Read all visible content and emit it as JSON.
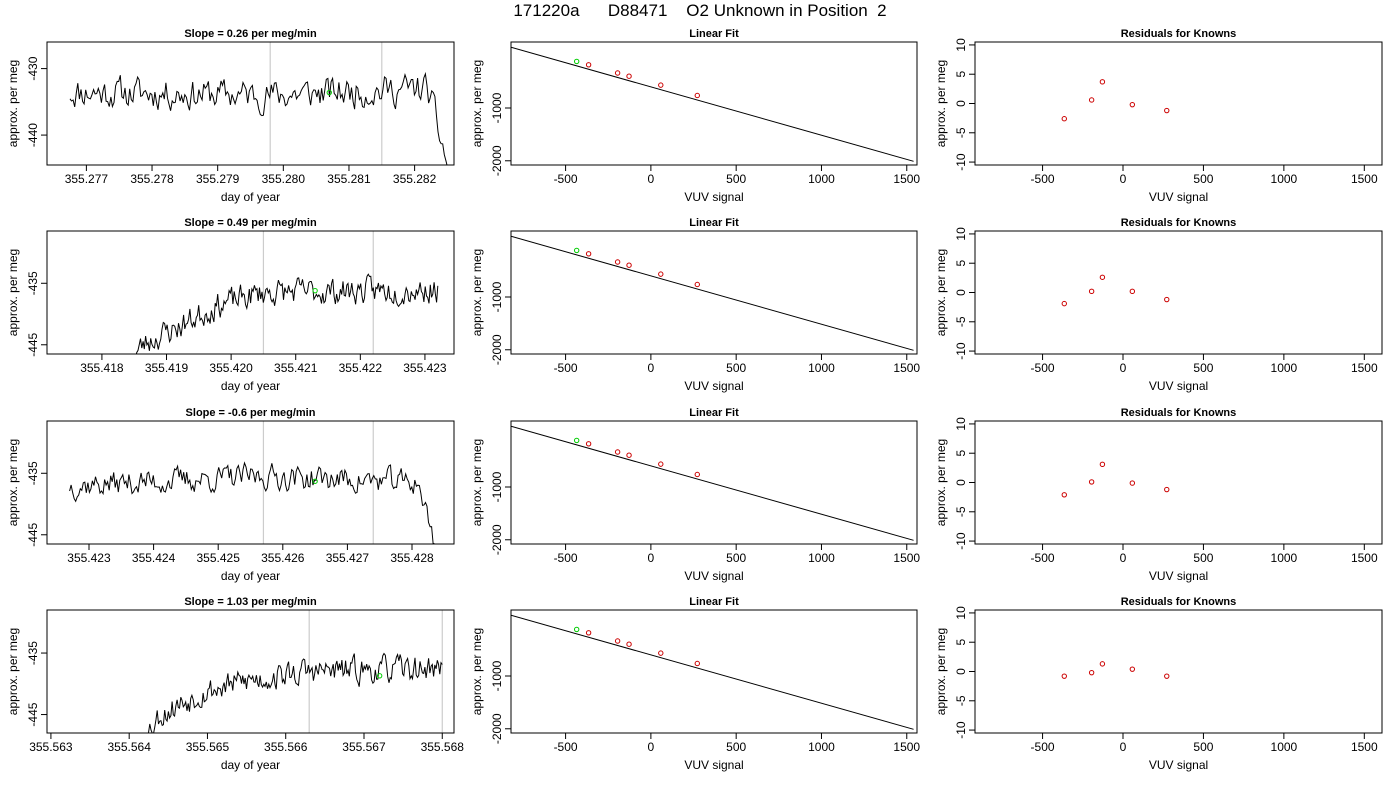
{
  "page": {
    "title": "171220a      D88471    O2 Unknown in Position  2"
  },
  "chart_data": [
    {
      "type": "line",
      "panel": "trace",
      "title": "Slope =  0.26  per meg/min",
      "xlabel": "day of year",
      "ylabel": "approx. per meg",
      "xlim": [
        355.2764,
        355.2826
      ],
      "ylim": [
        -444.5,
        -426
      ],
      "xticks": [
        355.277,
        355.278,
        355.279,
        355.28,
        355.281,
        355.282
      ],
      "xtick_labels": [
        "355.277",
        "355.278",
        "355.279",
        "355.280",
        "355.281",
        "355.282"
      ],
      "yticks": [
        -430,
        -440
      ],
      "ytick_labels": [
        "-430",
        "-440"
      ],
      "vlines": [
        355.2798,
        355.2815
      ],
      "marker": {
        "x": 355.2807,
        "y": -433.6,
        "color": "#00cc00"
      },
      "trace": {
        "x_start": 355.27675,
        "x_end": 355.2825,
        "seed": 11,
        "base": -434.5,
        "amp": 2.6,
        "segments": [
          {
            "x": 355.27675,
            "y": -433.5
          },
          {
            "x": 355.2798,
            "y": -434
          },
          {
            "x": 355.2822,
            "y": -433
          },
          {
            "x": 355.2825,
            "y": -444.5
          }
        ]
      }
    },
    {
      "type": "line",
      "panel": "fit",
      "title": "Linear Fit",
      "xlabel": "VUV signal",
      "ylabel": "approx. per meg",
      "xlim": [
        -820,
        1560
      ],
      "ylim": [
        -2080,
        250
      ],
      "xticks": [
        -500,
        0,
        500,
        1000,
        1500
      ],
      "xtick_labels": [
        "-500",
        "0",
        "500",
        "1000",
        "1500"
      ],
      "yticks": [
        -1000,
        -2000
      ],
      "ytick_labels": [
        "-1000",
        "-2000"
      ],
      "line": {
        "x": [
          -820,
          1540
        ],
        "y": [
          150,
          -2010
        ]
      },
      "knowns": {
        "x": [
          -365,
          -195,
          -128,
          58,
          272
        ],
        "y": [
          -182,
          -337,
          -398,
          -567,
          -763
        ],
        "color": "#cc0000"
      },
      "unknown": {
        "x": [
          -435
        ],
        "y": [
          -118
        ],
        "color": "#00cc00"
      }
    },
    {
      "type": "scatter",
      "panel": "residuals",
      "title": "Residuals for Knowns",
      "xlabel": "VUV signal",
      "ylabel": "approx. per meg",
      "xlim": [
        -920,
        1610
      ],
      "ylim": [
        -10.5,
        10.5
      ],
      "xticks": [
        -500,
        0,
        500,
        1000,
        1500
      ],
      "xtick_labels": [
        "-500",
        "0",
        "500",
        "1000",
        "1500"
      ],
      "yticks": [
        10,
        5,
        0,
        -5,
        -10
      ],
      "ytick_labels": [
        "10",
        "5",
        "0",
        "-5",
        "-10"
      ],
      "points": {
        "x": [
          -365,
          -195,
          -128,
          58,
          272
        ],
        "y": [
          -2.6,
          0.6,
          3.7,
          -0.2,
          -1.2
        ],
        "color": "#cc0000"
      }
    },
    {
      "type": "line",
      "panel": "trace",
      "title": "Slope =  0.49  per meg/min",
      "xlabel": "day of year",
      "ylabel": "approx. per meg",
      "xlim": [
        355.41715,
        355.42345
      ],
      "ylim": [
        -446.5,
        -426.5
      ],
      "xticks": [
        355.418,
        355.419,
        355.42,
        355.421,
        355.422,
        355.423
      ],
      "xtick_labels": [
        "355.418",
        "355.419",
        "355.420",
        "355.421",
        "355.422",
        "355.423"
      ],
      "yticks": [
        -435,
        -445
      ],
      "ytick_labels": [
        "-435",
        "-445"
      ],
      "vlines": [
        355.4205,
        355.4222
      ],
      "marker": {
        "x": 355.4213,
        "y": -436.2,
        "color": "#00cc00"
      },
      "trace": {
        "x_start": 355.4185,
        "x_end": 355.4232,
        "seed": 23,
        "base": -437,
        "amp": 2.4,
        "segments": [
          {
            "x": 355.4185,
            "y": -446.5
          },
          {
            "x": 355.4187,
            "y": -444.5
          },
          {
            "x": 355.4192,
            "y": -442
          },
          {
            "x": 355.4198,
            "y": -438.5
          },
          {
            "x": 355.4205,
            "y": -436.5
          },
          {
            "x": 355.4232,
            "y": -436
          }
        ]
      }
    },
    {
      "type": "line",
      "panel": "fit",
      "title": "Linear Fit",
      "xlabel": "VUV signal",
      "ylabel": "approx. per meg",
      "xlim": [
        -820,
        1560
      ],
      "ylim": [
        -2080,
        250
      ],
      "xticks": [
        -500,
        0,
        500,
        1000,
        1500
      ],
      "xtick_labels": [
        "-500",
        "0",
        "500",
        "1000",
        "1500"
      ],
      "yticks": [
        -1000,
        -2000
      ],
      "ytick_labels": [
        "-1000",
        "-2000"
      ],
      "line": {
        "x": [
          -820,
          1540
        ],
        "y": [
          150,
          -2010
        ]
      },
      "knowns": {
        "x": [
          -365,
          -195,
          -128,
          58,
          272
        ],
        "y": [
          -182,
          -337,
          -398,
          -567,
          -763
        ],
        "color": "#cc0000"
      },
      "unknown": {
        "x": [
          -435
        ],
        "y": [
          -118
        ],
        "color": "#00cc00"
      }
    },
    {
      "type": "scatter",
      "panel": "residuals",
      "title": "Residuals for Knowns",
      "xlabel": "VUV signal",
      "ylabel": "approx. per meg",
      "xlim": [
        -920,
        1610
      ],
      "ylim": [
        -10.5,
        10.5
      ],
      "xticks": [
        -500,
        0,
        500,
        1000,
        1500
      ],
      "xtick_labels": [
        "-500",
        "0",
        "500",
        "1000",
        "1500"
      ],
      "yticks": [
        10,
        5,
        0,
        -5,
        -10
      ],
      "ytick_labels": [
        "10",
        "5",
        "0",
        "-5",
        "-10"
      ],
      "points": {
        "x": [
          -365,
          -195,
          -128,
          58,
          272
        ],
        "y": [
          -1.9,
          0.2,
          2.6,
          0.2,
          -1.2
        ],
        "color": "#cc0000"
      }
    },
    {
      "type": "line",
      "panel": "trace",
      "title": "Slope =  -0.6  per meg/min",
      "xlabel": "day of year",
      "ylabel": "approx. per meg",
      "xlim": [
        355.42235,
        355.42865
      ],
      "ylim": [
        -446.5,
        -426.5
      ],
      "xticks": [
        355.423,
        355.424,
        355.425,
        355.426,
        355.427,
        355.428
      ],
      "xtick_labels": [
        "355.423",
        "355.424",
        "355.425",
        "355.426",
        "355.427",
        "355.428"
      ],
      "yticks": [
        -435,
        -445
      ],
      "ytick_labels": [
        "-435",
        "-445"
      ],
      "vlines": [
        355.4257,
        355.4274
      ],
      "marker": {
        "x": 355.4265,
        "y": -436.3,
        "color": "#00cc00"
      },
      "trace": {
        "x_start": 355.4227,
        "x_end": 355.42835,
        "seed": 37,
        "base": -436.5,
        "amp": 2.3,
        "segments": [
          {
            "x": 355.4227,
            "y": -437
          },
          {
            "x": 355.4257,
            "y": -435.5
          },
          {
            "x": 355.4281,
            "y": -436.5
          },
          {
            "x": 355.42835,
            "y": -446.5
          }
        ]
      }
    },
    {
      "type": "line",
      "panel": "fit",
      "title": "Linear Fit",
      "xlabel": "VUV signal",
      "ylabel": "approx. per meg",
      "xlim": [
        -820,
        1560
      ],
      "ylim": [
        -2080,
        250
      ],
      "xticks": [
        -500,
        0,
        500,
        1000,
        1500
      ],
      "xtick_labels": [
        "-500",
        "0",
        "500",
        "1000",
        "1500"
      ],
      "yticks": [
        -1000,
        -2000
      ],
      "ytick_labels": [
        "-1000",
        "-2000"
      ],
      "line": {
        "x": [
          -820,
          1540
        ],
        "y": [
          150,
          -2010
        ]
      },
      "knowns": {
        "x": [
          -365,
          -195,
          -128,
          58,
          272
        ],
        "y": [
          -182,
          -337,
          -398,
          -567,
          -763
        ],
        "color": "#cc0000"
      },
      "unknown": {
        "x": [
          -435
        ],
        "y": [
          -118
        ],
        "color": "#00cc00"
      }
    },
    {
      "type": "scatter",
      "panel": "residuals",
      "title": "Residuals for Knowns",
      "xlabel": "VUV signal",
      "ylabel": "approx. per meg",
      "xlim": [
        -920,
        1610
      ],
      "ylim": [
        -10.5,
        10.5
      ],
      "xticks": [
        -500,
        0,
        500,
        1000,
        1500
      ],
      "xtick_labels": [
        "-500",
        "0",
        "500",
        "1000",
        "1500"
      ],
      "yticks": [
        10,
        5,
        0,
        -5,
        -10
      ],
      "ytick_labels": [
        "10",
        "5",
        "0",
        "-5",
        "-10"
      ],
      "points": {
        "x": [
          -365,
          -195,
          -128,
          58,
          272
        ],
        "y": [
          -2.1,
          0.1,
          3.1,
          -0.1,
          -1.2
        ],
        "color": "#cc0000"
      }
    },
    {
      "type": "line",
      "panel": "trace",
      "title": "Slope =  1.03  per meg/min",
      "xlabel": "day of year",
      "ylabel": "approx. per meg",
      "xlim": [
        355.56295,
        355.56815
      ],
      "ylim": [
        -448,
        -428
      ],
      "xticks": [
        355.563,
        355.564,
        355.565,
        355.566,
        355.567,
        355.568
      ],
      "xtick_labels": [
        "355.563",
        "355.564",
        "355.565",
        "355.566",
        "355.567",
        "355.568"
      ],
      "yticks": [
        -435,
        -445
      ],
      "ytick_labels": [
        "-435",
        "-445"
      ],
      "vlines": [
        355.5663,
        355.568
      ],
      "marker": {
        "x": 355.5672,
        "y": -438.7,
        "color": "#00cc00"
      },
      "trace": {
        "x_start": 355.5642,
        "x_end": 355.568,
        "seed": 53,
        "base": -438,
        "amp": 2.4,
        "segments": [
          {
            "x": 355.5642,
            "y": -448
          },
          {
            "x": 355.5644,
            "y": -445
          },
          {
            "x": 355.5649,
            "y": -441.5
          },
          {
            "x": 355.5655,
            "y": -439.5
          },
          {
            "x": 355.5663,
            "y": -438
          },
          {
            "x": 355.568,
            "y": -437.5
          }
        ]
      }
    },
    {
      "type": "line",
      "panel": "fit",
      "title": "Linear Fit",
      "xlabel": "VUV signal",
      "ylabel": "approx. per meg",
      "xlim": [
        -820,
        1560
      ],
      "ylim": [
        -2080,
        250
      ],
      "xticks": [
        -500,
        0,
        500,
        1000,
        1500
      ],
      "xtick_labels": [
        "-500",
        "0",
        "500",
        "1000",
        "1500"
      ],
      "yticks": [
        -1000,
        -2000
      ],
      "ytick_labels": [
        "-1000",
        "-2000"
      ],
      "line": {
        "x": [
          -820,
          1540
        ],
        "y": [
          150,
          -2010
        ]
      },
      "knowns": {
        "x": [
          -365,
          -195,
          -128,
          58,
          272
        ],
        "y": [
          -182,
          -337,
          -398,
          -567,
          -763
        ],
        "color": "#cc0000"
      },
      "unknown": {
        "x": [
          -435
        ],
        "y": [
          -118
        ],
        "color": "#00cc00"
      }
    },
    {
      "type": "scatter",
      "panel": "residuals",
      "title": "Residuals for Knowns",
      "xlabel": "VUV signal",
      "ylabel": "approx. per meg",
      "xlim": [
        -920,
        1610
      ],
      "ylim": [
        -10.5,
        10.5
      ],
      "xticks": [
        -500,
        0,
        500,
        1000,
        1500
      ],
      "xtick_labels": [
        "-500",
        "0",
        "500",
        "1000",
        "1500"
      ],
      "yticks": [
        10,
        5,
        0,
        -5,
        -10
      ],
      "ytick_labels": [
        "10",
        "5",
        "0",
        "-5",
        "-10"
      ],
      "points": {
        "x": [
          -365,
          -195,
          -128,
          58,
          272
        ],
        "y": [
          -0.8,
          -0.2,
          1.3,
          0.4,
          -0.8
        ],
        "color": "#cc0000"
      }
    }
  ]
}
